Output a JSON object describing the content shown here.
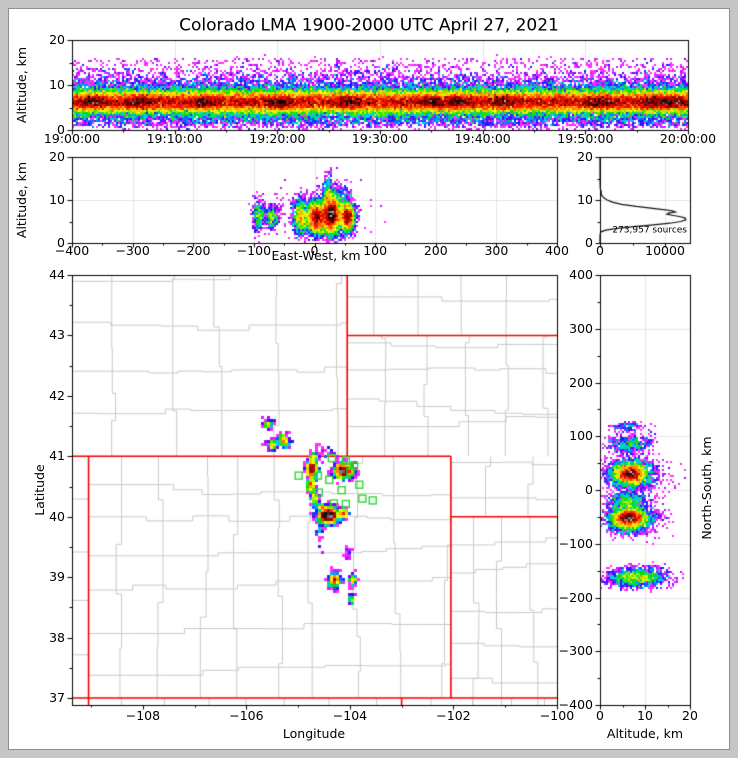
{
  "title": "Colorado LMA 1900-2000 UTC April 27, 2021",
  "panels": {
    "time_height": {
      "ylabel": "Altitude, km"
    },
    "east_west": {
      "xlabel": "East-West, km",
      "ylabel": "Altitude, km"
    },
    "histogram": {
      "annotation": "273,957 sources"
    },
    "map": {
      "xlabel": "Longitude",
      "ylabel": "Latitude"
    },
    "north_south": {
      "xlabel": "Altitude, km",
      "ylabel": "North-South, km"
    }
  },
  "colors": {
    "background": "#ffffff",
    "chrome": "#c6c6c6",
    "chrome_edge": "#8e8e8e",
    "frame": "#000000",
    "grid": "#e4e4e4",
    "county": "#c9c9c9",
    "state_border": "#f20000",
    "station": "#2fd82f",
    "histogram_line": "#111111",
    "colormap": [
      [
        0,
        "#ff30ff"
      ],
      [
        0.09,
        "#8a00ff"
      ],
      [
        0.2,
        "#1616ff"
      ],
      [
        0.33,
        "#00d0ff"
      ],
      [
        0.46,
        "#00dc00"
      ],
      [
        0.6,
        "#ffff00"
      ],
      [
        0.7,
        "#ff9400"
      ],
      [
        0.79,
        "#ff1400"
      ],
      [
        0.88,
        "#900000"
      ],
      [
        0.945,
        "#000000"
      ],
      [
        1,
        "#bfbfbf"
      ]
    ]
  },
  "chart_data": [
    {
      "id": "time_height",
      "type": "heatmap",
      "ylabel": "Altitude, km",
      "xlim": [
        0,
        3600
      ],
      "ylim": [
        0,
        20
      ],
      "xticks": [
        0,
        600,
        1200,
        1800,
        2400,
        3000,
        3600
      ],
      "xtick_labels": [
        "19:00:00",
        "19:10:00",
        "19:20:00",
        "19:30:00",
        "19:40:00",
        "19:50:00",
        "20:00:00"
      ],
      "yticks": [
        0,
        10,
        20
      ],
      "ytick_labels": [
        "0",
        "10",
        "20"
      ],
      "xminor_step": 300,
      "yminor_step": 5,
      "grid": true,
      "band": [
        {
          "y": 6.2,
          "sy": 1.3,
          "n": 60000
        },
        {
          "y": 6.9,
          "sy": 2.6,
          "n": 16000
        },
        {
          "y": 2.3,
          "sy": 0.9,
          "n": 2200
        }
      ],
      "uniform_speckle": {
        "y0": 0.5,
        "y1": 16,
        "n": 2600
      },
      "hot_spots": {
        "times": [
          130,
          390,
          770,
          1210,
          1620,
          2100,
          2250,
          2530,
          3080,
          3400,
          3520
        ],
        "y": 6.2,
        "sx": 45,
        "sy": 0.9,
        "n": 700
      }
    },
    {
      "id": "east_west",
      "type": "heatmap",
      "xlabel": "East-West, km",
      "ylabel": "Altitude, km",
      "xlim": [
        -400,
        400
      ],
      "ylim": [
        0,
        20
      ],
      "xticks": [
        -400,
        -300,
        -200,
        -100,
        0,
        100,
        200,
        300,
        400
      ],
      "xtick_labels": [
        "−400",
        "−300",
        "−200",
        "−100",
        "0",
        "100",
        "200",
        "300",
        "400"
      ],
      "yticks": [
        0,
        10,
        20
      ],
      "ytick_labels": [
        "0",
        "10",
        "20"
      ],
      "xminor_step": 50,
      "yminor_step": 5,
      "grid": true,
      "clusters": [
        {
          "x": -92,
          "y": 6.4,
          "sx": 5,
          "sy": 1.7,
          "n": 380
        },
        {
          "x": -70,
          "y": 6.0,
          "sx": 5,
          "sy": 1.5,
          "n": 330
        },
        {
          "x": -23,
          "y": 6.2,
          "sx": 6,
          "sy": 2.0,
          "n": 900
        },
        {
          "x": 3,
          "y": 6.0,
          "sx": 8,
          "sy": 1.8,
          "n": 2600
        },
        {
          "x": 28,
          "y": 6.8,
          "sx": 9,
          "sy": 2.4,
          "n": 3200
        },
        {
          "x": 28,
          "y": 6.6,
          "sx": 5,
          "sy": 1.2,
          "n": 800
        },
        {
          "x": 22,
          "y": 11.5,
          "sx": 4,
          "sy": 2.2,
          "n": 330
        },
        {
          "x": 55,
          "y": 6.0,
          "sx": 6,
          "sy": 1.7,
          "n": 1900
        },
        {
          "x": 13,
          "y": 4.2,
          "sx": 18,
          "sy": 1.2,
          "n": 500
        },
        {
          "x": 42,
          "y": 8.5,
          "sx": 10,
          "sy": 2.5,
          "n": 380
        },
        {
          "x": 5,
          "y": 8.0,
          "sx": 38,
          "sy": 3.0,
          "n": 260
        }
      ]
    },
    {
      "id": "altitude_histogram",
      "type": "line",
      "annotation": "273,957 sources",
      "xlim": [
        0,
        13840
      ],
      "ylim": [
        0,
        20
      ],
      "xticks": [
        0,
        10000
      ],
      "xtick_labels": [
        "0",
        "10000"
      ],
      "yticks": [
        0,
        10,
        20
      ],
      "ytick_labels": [
        "0",
        "10",
        "20"
      ],
      "xminor_step": 5000,
      "yminor_step": 5,
      "grid": true,
      "points": [
        [
          0,
          0
        ],
        [
          1.5,
          0
        ],
        [
          2.2,
          40
        ],
        [
          2.6,
          150
        ],
        [
          3,
          900
        ],
        [
          3.4,
          2600
        ],
        [
          3.8,
          5200
        ],
        [
          4.2,
          8200
        ],
        [
          4.6,
          10800
        ],
        [
          5,
          12400
        ],
        [
          5.4,
          13200
        ],
        [
          5.8,
          13100
        ],
        [
          6.1,
          12400
        ],
        [
          6.4,
          11300
        ],
        [
          6.7,
          10300
        ],
        [
          7,
          10600
        ],
        [
          7.2,
          11600
        ],
        [
          7.5,
          11100
        ],
        [
          7.8,
          9400
        ],
        [
          8.1,
          7800
        ],
        [
          8.5,
          5600
        ],
        [
          9,
          3300
        ],
        [
          9.5,
          1900
        ],
        [
          10,
          1100
        ],
        [
          10.5,
          580
        ],
        [
          11,
          300
        ],
        [
          11.5,
          160
        ],
        [
          11.9,
          210
        ],
        [
          12.2,
          110
        ],
        [
          12.6,
          55
        ],
        [
          13,
          30
        ],
        [
          14,
          12
        ],
        [
          15,
          5
        ],
        [
          16,
          2
        ],
        [
          17,
          1
        ],
        [
          20,
          0
        ]
      ]
    },
    {
      "id": "plan_map",
      "type": "map-heatmap",
      "xlabel": "Longitude",
      "ylabel": "Latitude",
      "xlim": [
        -109.37,
        -100
      ],
      "ylim": [
        36.885,
        44
      ],
      "xticks": [
        -108,
        -106,
        -104,
        -102,
        -100
      ],
      "xtick_labels": [
        "−108",
        "−106",
        "−104",
        "−102",
        "−100"
      ],
      "yticks": [
        37,
        38,
        39,
        40,
        41,
        42,
        43,
        44
      ],
      "ytick_labels": [
        "37",
        "38",
        "39",
        "40",
        "41",
        "42",
        "43",
        "44"
      ],
      "xminor_step": 1,
      "yminor_step": 0.5,
      "grid": false,
      "state_borders": [
        [
          [
            -109.37,
            41
          ],
          [
            -102.05,
            41
          ]
        ],
        [
          [
            -109.05,
            41
          ],
          [
            -109.05,
            36.885
          ]
        ],
        [
          [
            -102.05,
            41
          ],
          [
            -102.05,
            37
          ]
        ],
        [
          [
            -109.37,
            37
          ],
          [
            -100,
            37
          ]
        ],
        [
          [
            -102.05,
            40
          ],
          [
            -100,
            40
          ]
        ],
        [
          [
            -104.053,
            44
          ],
          [
            -104.053,
            41
          ]
        ],
        [
          [
            -104.053,
            43
          ],
          [
            -100,
            43
          ]
        ],
        [
          [
            -103.002,
            37
          ],
          [
            -103.002,
            36.885
          ]
        ]
      ],
      "county_regions": [
        {
          "lon0": -109.37,
          "lon1": -104.053,
          "lat0": 41,
          "lat1": 44,
          "dlon": 1.05,
          "dlat": 0.75
        },
        {
          "lon0": -104.053,
          "lon1": -100,
          "lat0": 43,
          "lat1": 44,
          "dlon": 0.8,
          "dlat": 0.6
        },
        {
          "lon0": -104.053,
          "lon1": -100,
          "lat0": 41,
          "lat1": 43,
          "dlon": 0.72,
          "dlat": 0.55
        },
        {
          "lon0": -102.05,
          "lon1": -100,
          "lat0": 40,
          "lat1": 41,
          "dlon": 0.7,
          "dlat": 0.5
        },
        {
          "lon0": -109.05,
          "lon1": -102.05,
          "lat0": 37,
          "lat1": 41,
          "dlon": 0.8,
          "dlat": 0.62
        },
        {
          "lon0": -102.05,
          "lon1": -100,
          "lat0": 36.885,
          "lat1": 40,
          "dlon": 0.66,
          "dlat": 0.55
        },
        {
          "lon0": -109.37,
          "lon1": -109.05,
          "lat0": 37,
          "lat1": 41,
          "dlon": 0.5,
          "dlat": 0.8
        },
        {
          "lon0": -109.05,
          "lon1": -103.002,
          "lat0": 36.885,
          "lat1": 37,
          "dlon": 0.8,
          "dlat": 0.5
        },
        {
          "lon0": -103.002,
          "lon1": -100,
          "lat0": 36.885,
          "lat1": 37,
          "dlon": 0.7,
          "dlat": 0.5
        }
      ],
      "stations": [
        [
          -104.35,
          40.97
        ],
        [
          -104.08,
          40.93
        ],
        [
          -103.92,
          40.84
        ],
        [
          -103.99,
          40.74
        ],
        [
          -104.99,
          40.68
        ],
        [
          -104.62,
          40.68
        ],
        [
          -104.4,
          40.61
        ],
        [
          -103.82,
          40.53
        ],
        [
          -104.6,
          40.4
        ],
        [
          -104.16,
          40.44
        ],
        [
          -103.76,
          40.3
        ],
        [
          -104.31,
          40.22
        ],
        [
          -104.08,
          40.21
        ],
        [
          -103.56,
          40.27
        ]
      ],
      "clusters": [
        {
          "x": -105.58,
          "y": 41.53,
          "sx": 0.05,
          "sy": 0.035,
          "n": 70
        },
        {
          "x": -105.5,
          "y": 41.2,
          "sx": 0.055,
          "sy": 0.045,
          "n": 100
        },
        {
          "x": -105.27,
          "y": 41.26,
          "sx": 0.06,
          "sy": 0.05,
          "n": 150
        },
        {
          "x": -104.73,
          "y": 40.78,
          "sx": 0.05,
          "sy": 0.09,
          "n": 520
        },
        {
          "x": -104.76,
          "y": 40.52,
          "sx": 0.035,
          "sy": 0.05,
          "n": 140
        },
        {
          "x": -104.7,
          "y": 41.0,
          "sx": 0.03,
          "sy": 0.03,
          "n": 50
        },
        {
          "x": -104.12,
          "y": 40.76,
          "sx": 0.09,
          "sy": 0.06,
          "n": 800
        },
        {
          "x": -104.68,
          "y": 40.3,
          "sx": 0.04,
          "sy": 0.07,
          "n": 110
        },
        {
          "x": -104.55,
          "y": 40.15,
          "sx": 0.03,
          "sy": 0.04,
          "n": 60
        },
        {
          "x": -104.42,
          "y": 40.02,
          "sx": 0.095,
          "sy": 0.065,
          "n": 1100
        },
        {
          "x": -104.13,
          "y": 40.06,
          "sx": 0.05,
          "sy": 0.04,
          "n": 150
        },
        {
          "x": -104.3,
          "y": 38.95,
          "sx": 0.06,
          "sy": 0.065,
          "n": 260
        },
        {
          "x": -103.95,
          "y": 38.95,
          "sx": 0.035,
          "sy": 0.05,
          "n": 80
        },
        {
          "x": -103.97,
          "y": 38.64,
          "sx": 0.02,
          "sy": 0.045,
          "n": 40
        },
        {
          "x": -104.58,
          "y": 39.75,
          "sx": 0.04,
          "sy": 0.12,
          "n": 30
        },
        {
          "x": -104.5,
          "y": 41.05,
          "sx": 0.13,
          "sy": 0.08,
          "n": 24
        },
        {
          "x": -104.05,
          "y": 39.38,
          "sx": 0.07,
          "sy": 0.08,
          "n": 12
        }
      ]
    },
    {
      "id": "north_south",
      "type": "heatmap",
      "xlabel": "Altitude, km",
      "ylabel": "North-South, km",
      "xlim": [
        0,
        20
      ],
      "ylim": [
        -400,
        400
      ],
      "xticks": [
        0,
        10,
        20
      ],
      "xtick_labels": [
        "0",
        "10",
        "20"
      ],
      "yticks": [
        -400,
        -300,
        -200,
        -100,
        0,
        100,
        200,
        300,
        400
      ],
      "ytick_labels": [
        "−400",
        "−300",
        "−200",
        "−100",
        "0",
        "100",
        "200",
        "300",
        "400"
      ],
      "xminor_step": 5,
      "yminor_step": 50,
      "grid": true,
      "clusters": [
        {
          "x": 6.0,
          "y": 118,
          "sx": 2.0,
          "sy": 4,
          "n": 120
        },
        {
          "x": 6.5,
          "y": 86,
          "sx": 2.5,
          "sy": 8,
          "n": 480
        },
        {
          "x": 6.8,
          "y": 30,
          "sx": 2.3,
          "sy": 13,
          "n": 3000
        },
        {
          "x": 6.8,
          "y": 30,
          "sx": 1.2,
          "sy": 6,
          "n": 900
        },
        {
          "x": 6.2,
          "y": -18,
          "sx": 2.0,
          "sy": 7,
          "n": 500
        },
        {
          "x": 6.5,
          "y": -52,
          "sx": 2.4,
          "sy": 12,
          "n": 3200
        },
        {
          "x": 6.3,
          "y": -52,
          "sx": 1.3,
          "sy": 6,
          "n": 1000
        },
        {
          "x": 8.0,
          "y": -163,
          "sx": 3.2,
          "sy": 9,
          "n": 1300
        },
        {
          "x": 12,
          "y": -160,
          "sx": 2.5,
          "sy": 8,
          "n": 120
        },
        {
          "x": 10,
          "y": 25,
          "sx": 4,
          "sy": 25,
          "n": 160
        },
        {
          "x": 11,
          "y": -60,
          "sx": 3,
          "sy": 14,
          "n": 90
        }
      ]
    }
  ]
}
